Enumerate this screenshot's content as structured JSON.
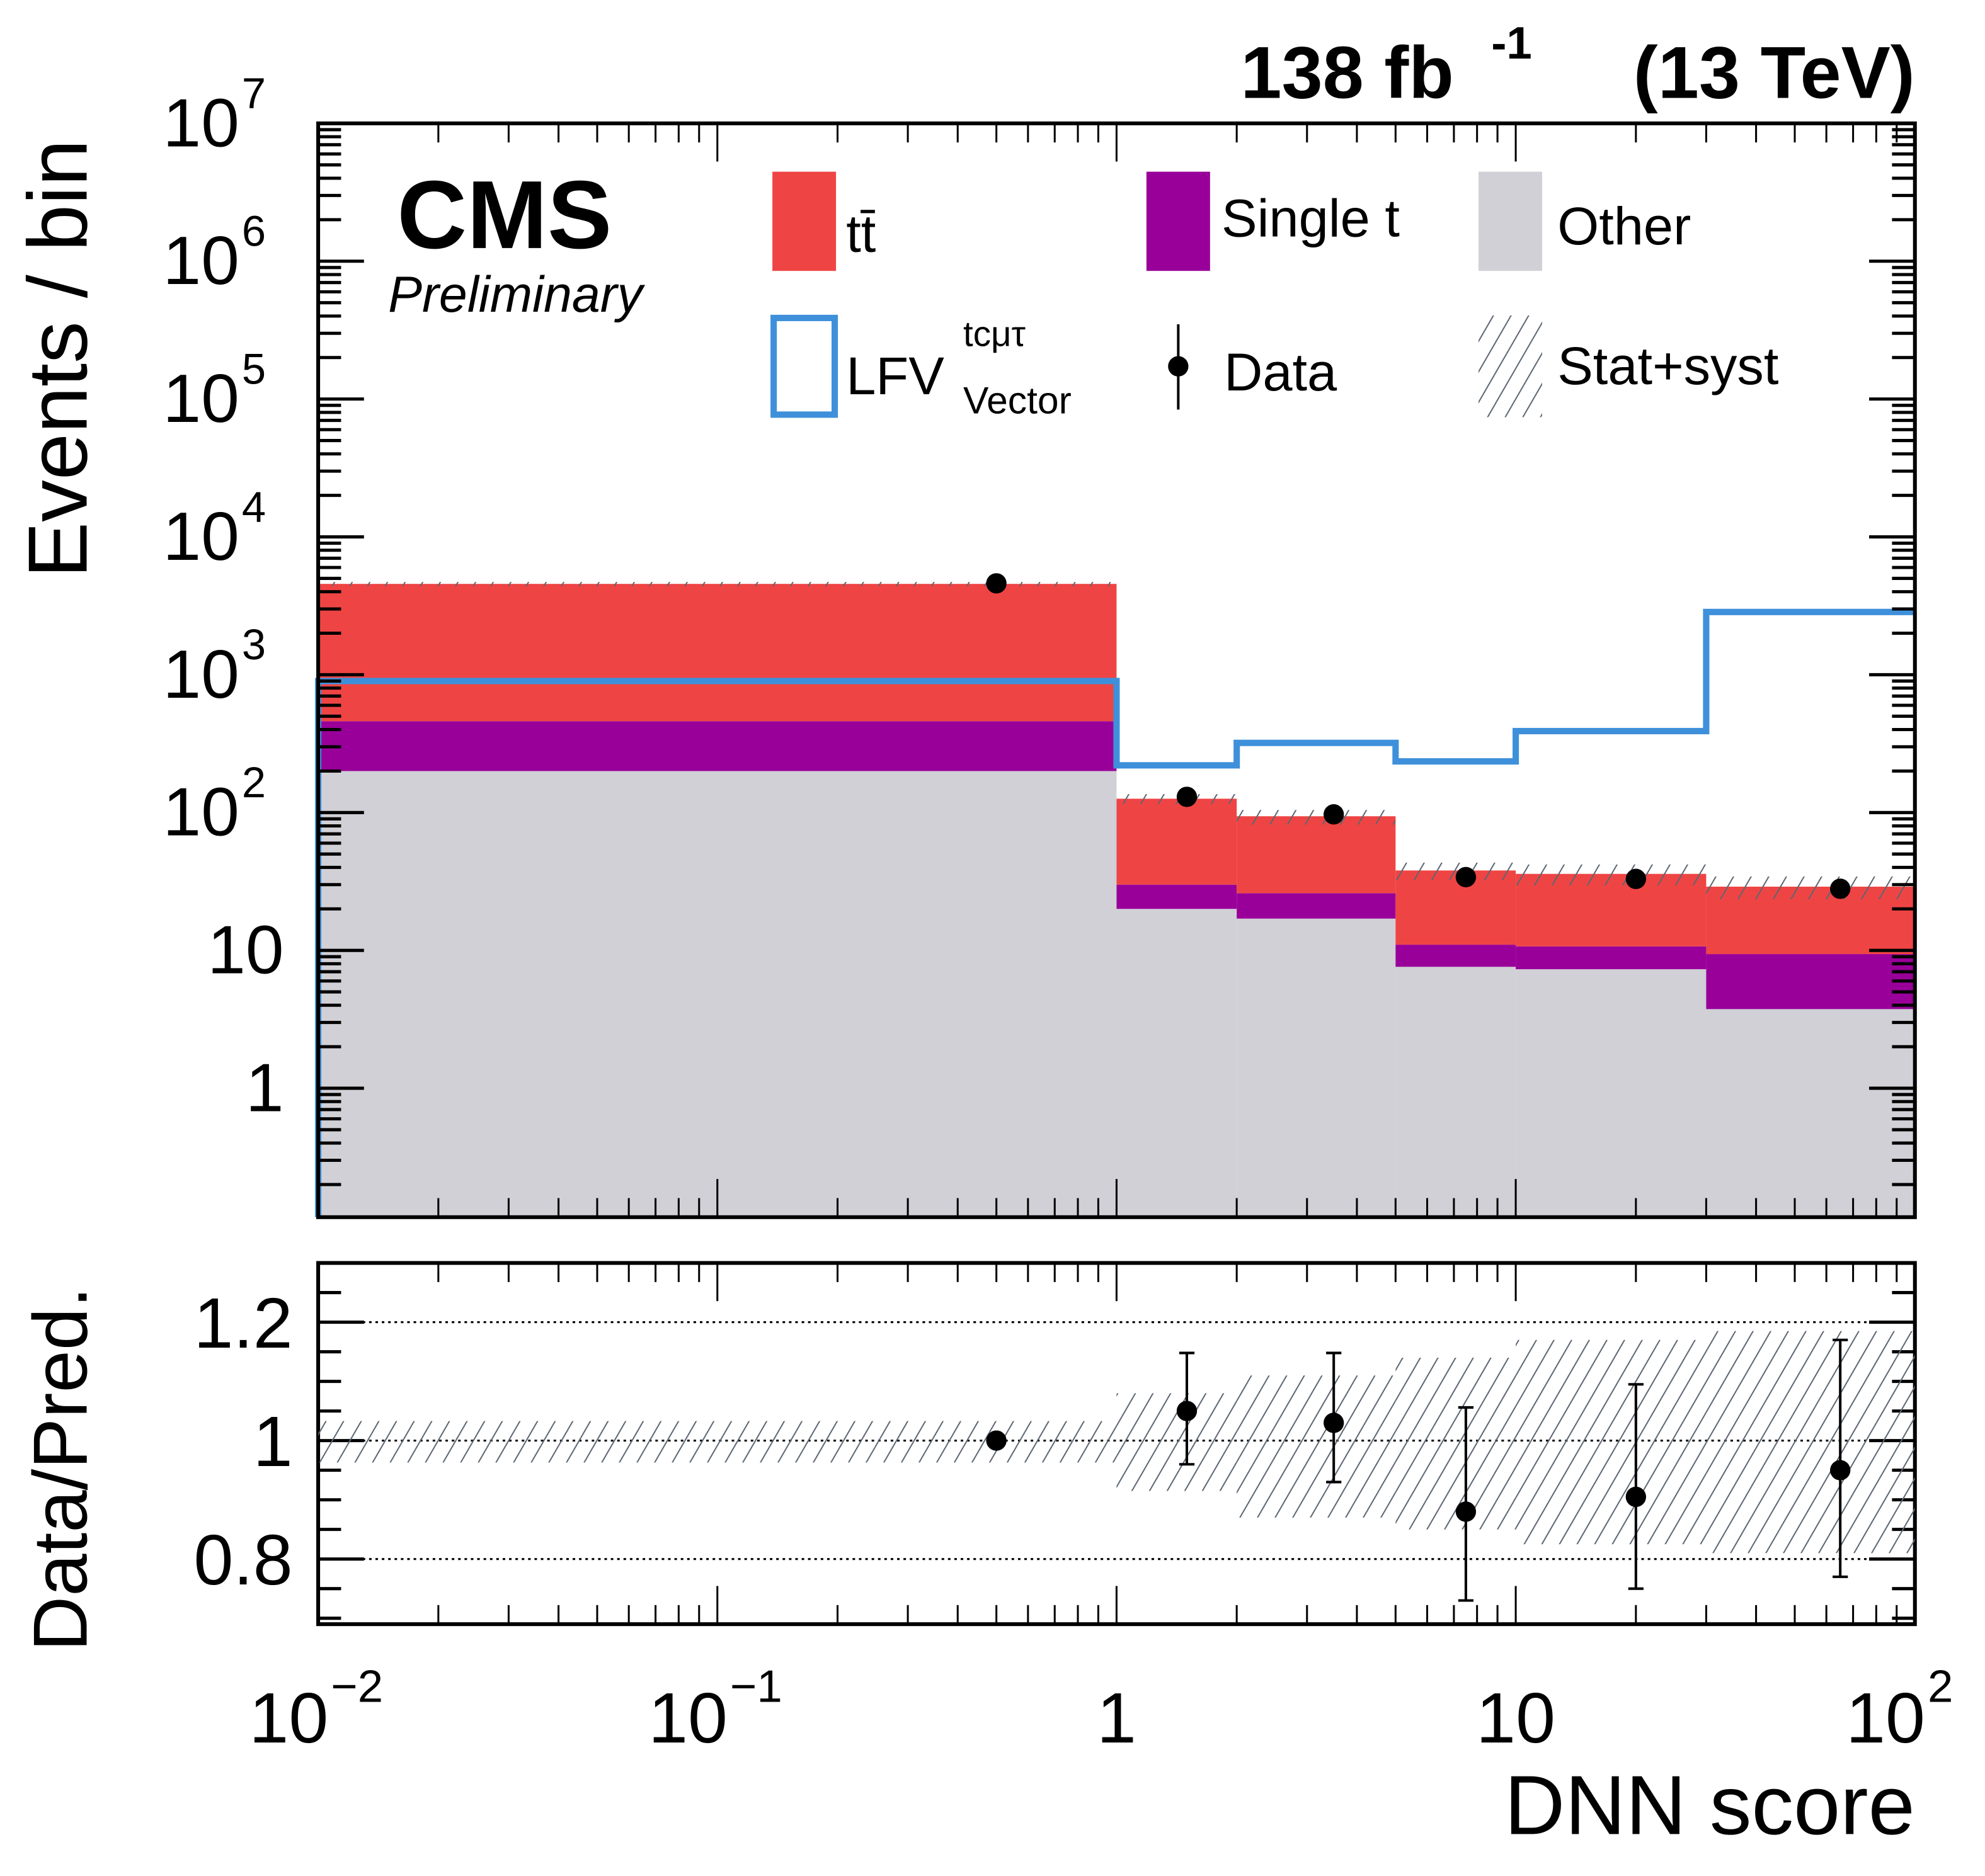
{
  "header": {
    "lumi": "138 fb",
    "lumi_exp": "-1",
    "energy": "(13 TeV)"
  },
  "experiment": {
    "name": "CMS",
    "status": "Preliminary"
  },
  "legend": {
    "ttbar": "tt̄",
    "single_t": "Single t",
    "other": "Other",
    "signal_base": "LFV",
    "signal_sup": "tcμτ",
    "signal_sub": "Vector",
    "data": "Data",
    "unc": "Stat+syst"
  },
  "colors": {
    "ttbar": "#ef4444",
    "single_t": "#990099",
    "other": "#d0d0d6",
    "signal": "#3f90da",
    "hatch": "#5c6672",
    "data": "#000000"
  },
  "chart_data": [
    {
      "type": "bar",
      "subtype": "stacked-histogram-log",
      "ylabel": "Events / bin",
      "xscale": "log",
      "yscale": "log",
      "xlim": [
        0.01,
        100
      ],
      "ylim": [
        0.116,
        10000000
      ],
      "bin_edges": [
        0.01,
        1,
        2,
        5,
        10,
        30,
        100
      ],
      "series": [
        {
          "name": "Other",
          "values": [
            200,
            20,
            17,
            7.6,
            7.3,
            3.75
          ]
        },
        {
          "name": "Single t",
          "values": [
            260,
            10,
            9,
            3.4,
            3.4,
            5.65
          ]
        },
        {
          "name": "ttbar",
          "values": [
            4100,
            96,
            68,
            27,
            25.2,
            19.6
          ]
        }
      ],
      "total": [
        4560,
        126,
        94,
        38,
        35.9,
        29
      ],
      "signal": {
        "name": "LFV tcmutau Vector",
        "values": [
          900,
          220,
          320,
          235,
          390,
          2850
        ]
      },
      "data": {
        "x": [
          0.5,
          1.5,
          3.5,
          7.5,
          20,
          65
        ],
        "y": [
          4600,
          130,
          97,
          34,
          33,
          28
        ]
      },
      "unc_rel": {
        "up": [
          1.033,
          1.08,
          1.11,
          1.14,
          1.17,
          1.185
        ],
        "down": [
          0.963,
          0.915,
          0.87,
          0.85,
          0.825,
          0.81
        ]
      },
      "ytick_labels": [
        {
          "value": 10000000,
          "base": "10",
          "exp": "7"
        },
        {
          "value": 1000000,
          "base": "10",
          "exp": "6"
        },
        {
          "value": 100000,
          "base": "10",
          "exp": "5"
        },
        {
          "value": 10000,
          "base": "10",
          "exp": "4"
        },
        {
          "value": 1000,
          "base": "10",
          "exp": "3"
        },
        {
          "value": 100,
          "base": "10",
          "exp": "2"
        },
        {
          "value": 10,
          "base": "10",
          "exp": ""
        },
        {
          "value": 1,
          "base": "1",
          "exp": ""
        }
      ]
    },
    {
      "type": "scatter",
      "subtype": "ratio",
      "xlabel": "DNN score",
      "ylabel": "Data/Pred.",
      "xscale": "log",
      "xlim": [
        0.01,
        100
      ],
      "ylim": [
        0.69,
        1.3
      ],
      "gridlines_y": [
        0.8,
        1.0,
        1.2
      ],
      "points": {
        "x": [
          0.5,
          1.5,
          3.5,
          7.5,
          20,
          65
        ],
        "y": [
          1.0,
          1.05,
          1.03,
          0.88,
          0.905,
          0.95
        ],
        "err_up": [
          1.005,
          1.148,
          1.148,
          1.056,
          1.095,
          1.17
        ],
        "err_down": [
          0.995,
          0.96,
          0.93,
          0.73,
          0.75,
          0.77
        ]
      },
      "ytick_labels": [
        {
          "value": 1.2,
          "text": "1.2"
        },
        {
          "value": 1.0,
          "text": "1"
        },
        {
          "value": 0.8,
          "text": "0.8"
        }
      ],
      "xtick_labels": [
        {
          "value": 0.01,
          "base": "10",
          "exp": "−2"
        },
        {
          "value": 0.1,
          "base": "10",
          "exp": "−1"
        },
        {
          "value": 1,
          "base": "1",
          "exp": ""
        },
        {
          "value": 10,
          "base": "10",
          "exp": ""
        },
        {
          "value": 100,
          "base": "10",
          "exp": "2"
        }
      ]
    }
  ]
}
